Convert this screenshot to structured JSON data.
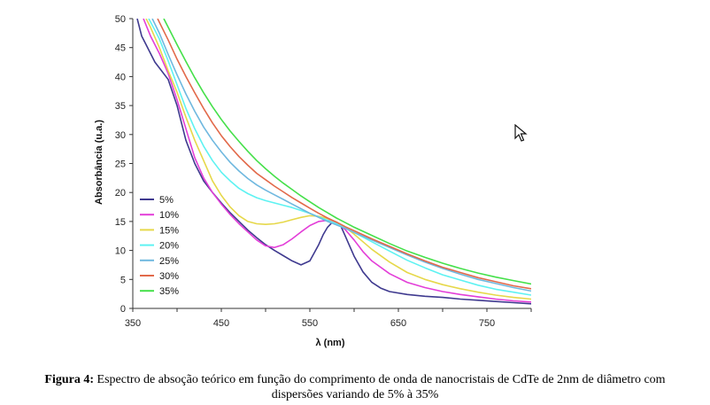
{
  "chart_data": {
    "type": "line",
    "xlabel": "λ (nm)",
    "ylabel": "Absorbância (u.a.)",
    "xlim": [
      350,
      800
    ],
    "ylim": [
      0,
      50
    ],
    "xticks": [
      350,
      450,
      550,
      650,
      750
    ],
    "yticks": [
      0,
      5,
      10,
      15,
      20,
      25,
      30,
      35,
      40,
      45,
      50
    ],
    "grid": false,
    "legend_position": "left",
    "series": [
      {
        "name": "5%",
        "color": "#3f3a8f",
        "x": [
          355,
          360,
          365,
          370,
          375,
          380,
          390,
          400,
          410,
          420,
          430,
          440,
          450,
          460,
          470,
          480,
          490,
          500,
          510,
          520,
          530,
          540,
          550,
          560,
          565,
          570,
          575,
          580,
          585,
          590,
          600,
          610,
          620,
          630,
          640,
          660,
          680,
          700,
          720,
          740,
          760,
          780,
          800
        ],
        "y": [
          50,
          47,
          45.5,
          44,
          42.5,
          41.5,
          39.5,
          35,
          29,
          25,
          22,
          20,
          18.2,
          16.5,
          15,
          13.5,
          12.2,
          11,
          10,
          9.1,
          8.2,
          7.5,
          8.2,
          11,
          12.7,
          14,
          14.8,
          14.9,
          14.2,
          12.5,
          9,
          6.3,
          4.5,
          3.5,
          2.9,
          2.4,
          2.1,
          1.9,
          1.6,
          1.4,
          1.2,
          1.0,
          0.8
        ]
      },
      {
        "name": "10%",
        "color": "#e33ed8",
        "x": [
          362,
          370,
          380,
          390,
          400,
          410,
          420,
          430,
          440,
          450,
          460,
          470,
          480,
          490,
          500,
          510,
          520,
          530,
          540,
          550,
          560,
          570,
          575,
          580,
          590,
          600,
          610,
          620,
          640,
          660,
          680,
          700,
          720,
          740,
          760,
          780,
          800
        ],
        "y": [
          50,
          47,
          44,
          40.5,
          36,
          31,
          26,
          22.5,
          20,
          18,
          16.2,
          14.6,
          13.2,
          11.8,
          10.8,
          10.5,
          11,
          12,
          13.2,
          14.3,
          15,
          15.2,
          15.1,
          14.8,
          13.6,
          11.8,
          9.8,
          8.2,
          6,
          4.5,
          3.6,
          2.9,
          2.4,
          2,
          1.6,
          1.3,
          1.1
        ]
      },
      {
        "name": "15%",
        "color": "#e6d84a",
        "x": [
          365,
          370,
          380,
          390,
          400,
          410,
          420,
          430,
          440,
          450,
          460,
          470,
          480,
          490,
          500,
          510,
          520,
          530,
          540,
          550,
          560,
          570,
          580,
          590,
          600,
          610,
          620,
          640,
          660,
          680,
          700,
          720,
          740,
          760,
          780,
          800
        ],
        "y": [
          50,
          48.5,
          45,
          41,
          37.3,
          33,
          29,
          25.5,
          22,
          19.5,
          17.5,
          16,
          15,
          14.6,
          14.5,
          14.6,
          14.9,
          15.3,
          15.7,
          16,
          15.9,
          15.5,
          14.9,
          14,
          12.8,
          11.5,
          10.2,
          8,
          6.2,
          5,
          4.1,
          3.4,
          2.8,
          2.3,
          1.9,
          1.6
        ]
      },
      {
        "name": "20%",
        "color": "#5ef2f2",
        "x": [
          368,
          375,
          380,
          390,
          400,
          410,
          420,
          430,
          440,
          450,
          460,
          470,
          480,
          490,
          500,
          510,
          520,
          530,
          540,
          550,
          560,
          570,
          580,
          590,
          600,
          610,
          620,
          640,
          660,
          680,
          700,
          720,
          740,
          760,
          780,
          800
        ],
        "y": [
          50,
          48,
          46.5,
          42.7,
          38.6,
          34.5,
          31,
          28,
          25.5,
          23.5,
          22,
          20.7,
          19.8,
          19.1,
          18.6,
          18.2,
          17.8,
          17.4,
          16.9,
          16.4,
          15.8,
          15.2,
          14.6,
          13.9,
          13.1,
          12.3,
          11.5,
          9.9,
          8.3,
          7,
          5.8,
          4.9,
          4,
          3.3,
          2.8,
          2.3
        ]
      },
      {
        "name": "25%",
        "color": "#6fb8df",
        "x": [
          372,
          380,
          390,
          400,
          410,
          420,
          430,
          440,
          450,
          460,
          470,
          480,
          490,
          500,
          510,
          520,
          530,
          540,
          550,
          560,
          570,
          580,
          590,
          600,
          620,
          640,
          660,
          680,
          700,
          720,
          740,
          760,
          780,
          800
        ],
        "y": [
          50,
          47.5,
          43.8,
          40.3,
          37,
          34,
          31.3,
          29,
          27,
          25.2,
          23.7,
          22.4,
          21.3,
          20.4,
          19.6,
          18.8,
          18,
          17.2,
          16.4,
          15.7,
          15,
          14.4,
          13.8,
          13.1,
          11.8,
          10.5,
          9.2,
          8,
          6.9,
          5.9,
          5,
          4.3,
          3.6,
          3
        ]
      },
      {
        "name": "30%",
        "color": "#e2694a",
        "x": [
          378,
          390,
          400,
          410,
          420,
          430,
          440,
          450,
          460,
          470,
          480,
          490,
          500,
          510,
          520,
          530,
          540,
          550,
          560,
          570,
          580,
          590,
          600,
          620,
          640,
          660,
          680,
          700,
          720,
          740,
          760,
          780,
          800
        ],
        "y": [
          50,
          46.3,
          43,
          40,
          37.2,
          34.5,
          32,
          29.8,
          27.9,
          26.2,
          24.7,
          23.3,
          22.2,
          21.1,
          20.1,
          19.1,
          18.2,
          17.3,
          16.4,
          15.6,
          14.9,
          14.1,
          13.4,
          12,
          10.7,
          9.4,
          8.2,
          7.1,
          6.2,
          5.3,
          4.6,
          3.9,
          3.4
        ]
      },
      {
        "name": "35%",
        "color": "#45e04a",
        "x": [
          385,
          390,
          400,
          410,
          420,
          430,
          440,
          450,
          460,
          470,
          480,
          490,
          500,
          510,
          520,
          530,
          540,
          550,
          560,
          570,
          580,
          590,
          600,
          620,
          640,
          660,
          680,
          700,
          720,
          740,
          760,
          780,
          800
        ],
        "y": [
          50,
          48.5,
          45.5,
          42.6,
          39.8,
          37.2,
          34.8,
          32.6,
          30.6,
          28.8,
          27.1,
          25.5,
          24.1,
          22.8,
          21.6,
          20.5,
          19.4,
          18.4,
          17.4,
          16.5,
          15.6,
          14.8,
          14,
          12.6,
          11.2,
          9.9,
          8.8,
          7.8,
          6.9,
          6.1,
          5.4,
          4.8,
          4.2
        ]
      }
    ]
  },
  "caption": {
    "label": "Figura 4:",
    "text": "Espectro de absoção teórico em função do comprimento de onda de nanocristais de CdTe de 2nm de diâmetro com dispersões variando de 5% à 35%"
  }
}
